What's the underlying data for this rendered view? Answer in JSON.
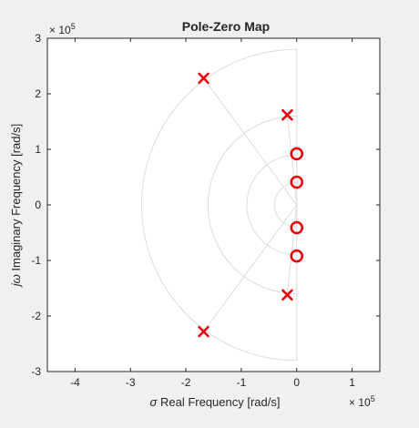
{
  "chart_data": {
    "type": "scatter",
    "title": "Pole-Zero Map",
    "xlabel": "σ Real Frequency [rad/s]",
    "xlabel_symbol": "σ",
    "xlabel_text": " Real Frequency [rad/s]",
    "ylabel": "jω Imaginary Frequency [rad/s]",
    "ylabel_symbol": "jω",
    "ylabel_text": " Imaginary Frequency [rad/s]",
    "x_exponent": {
      "base": "× 10",
      "power": "5"
    },
    "y_exponent": {
      "base": "× 10",
      "power": "5"
    },
    "xlim": [
      -4.5,
      1.5
    ],
    "ylim": [
      -3,
      3
    ],
    "x_ticks": [
      "-4",
      "-3",
      "-2",
      "-1",
      "0",
      "1"
    ],
    "y_ticks": [
      "3",
      "2",
      "1",
      "0",
      "-1",
      "-2",
      "-3"
    ],
    "grid": "s-plane damping/frequency grid",
    "series": [
      {
        "marker": "x",
        "color": "#e8000b",
        "points": [
          {
            "x": -1.68,
            "y": 2.28
          },
          {
            "x": -0.17,
            "y": 1.62
          },
          {
            "x": -0.17,
            "y": -1.62
          },
          {
            "x": -1.68,
            "y": -2.28
          }
        ]
      },
      {
        "marker": "o",
        "color": "#e8000b",
        "points": [
          {
            "x": 0.0,
            "y": 0.92
          },
          {
            "x": 0.0,
            "y": 0.41
          },
          {
            "x": 0.0,
            "y": -0.41
          },
          {
            "x": 0.0,
            "y": -0.92
          }
        ]
      }
    ],
    "grid_arcs": [
      0.4,
      0.9,
      1.6,
      2.8
    ],
    "grid_rays": [
      {
        "x": -1.68,
        "y": 2.28
      },
      {
        "x": -0.17,
        "y": 1.62
      },
      {
        "x": -0.17,
        "y": -1.62
      },
      {
        "x": -1.68,
        "y": -2.28
      }
    ]
  }
}
